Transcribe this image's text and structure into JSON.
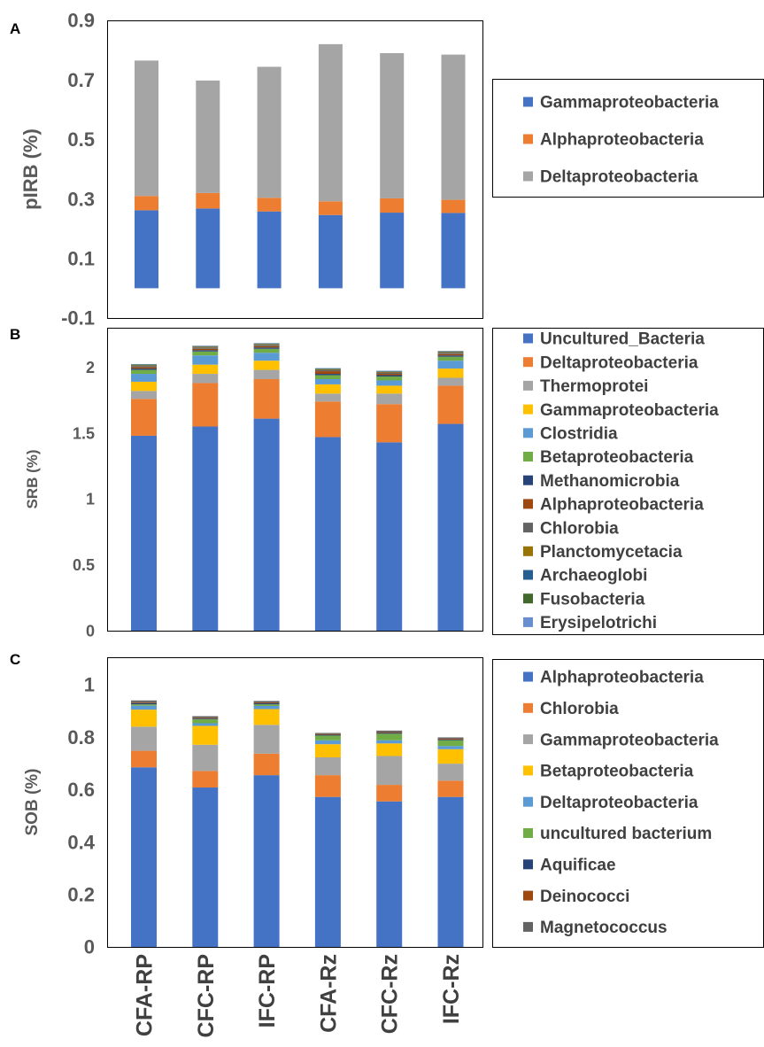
{
  "chart_data": [
    {
      "panel": "A",
      "type": "bar",
      "stacked": true,
      "ylabel": "pIRB (%)",
      "ylim": [
        -0.1,
        0.9
      ],
      "yticks": [
        -0.1,
        0.1,
        0.3,
        0.5,
        0.7,
        0.9
      ],
      "ytick_labels": [
        "-0.1",
        "0.1",
        "0.3",
        "0.5",
        "0.7",
        "0.9"
      ],
      "categories": [
        "CFA-RP",
        "CFC-RP",
        "IFC-RP",
        "CFA-Rz",
        "CFC-Rz",
        "IFC-Rz"
      ],
      "legend_position": "right",
      "series": [
        {
          "name": "Gammaproteobacteria",
          "color": "#4472C4",
          "values": [
            0.262,
            0.268,
            0.258,
            0.246,
            0.254,
            0.253
          ]
        },
        {
          "name": "Alphaproteobacteria",
          "color": "#ED7D31",
          "values": [
            0.048,
            0.052,
            0.046,
            0.046,
            0.048,
            0.044
          ]
        },
        {
          "name": "Deltaproteobacteria",
          "color": "#A5A5A5",
          "values": [
            0.455,
            0.378,
            0.44,
            0.528,
            0.488,
            0.488
          ]
        }
      ]
    },
    {
      "panel": "B",
      "type": "bar",
      "stacked": true,
      "ylabel": "SRB (%)",
      "ylim": [
        0,
        2.3
      ],
      "yticks": [
        0,
        0.5,
        1,
        1.5,
        2
      ],
      "ytick_labels": [
        "0",
        "0.5",
        "1",
        "1.5",
        "2"
      ],
      "categories": [
        "CFA-RP",
        "CFC-RP",
        "IFC-RP",
        "CFA-Rz",
        "CFC-Rz",
        "IFC-Rz"
      ],
      "legend_position": "right",
      "series": [
        {
          "name": "Uncultured_Bacteria",
          "color": "#4472C4",
          "values": [
            1.48,
            1.55,
            1.61,
            1.47,
            1.43,
            1.57
          ]
        },
        {
          "name": "Deltaproteobacteria",
          "color": "#ED7D31",
          "values": [
            0.28,
            0.33,
            0.3,
            0.27,
            0.29,
            0.29
          ]
        },
        {
          "name": "Thermoprotei",
          "color": "#A5A5A5",
          "values": [
            0.06,
            0.07,
            0.07,
            0.06,
            0.08,
            0.06
          ]
        },
        {
          "name": "Gammaproteobacteria",
          "color": "#FFC000",
          "values": [
            0.07,
            0.07,
            0.07,
            0.07,
            0.06,
            0.07
          ]
        },
        {
          "name": "Clostridia",
          "color": "#5B9BD5",
          "values": [
            0.06,
            0.07,
            0.06,
            0.04,
            0.04,
            0.06
          ]
        },
        {
          "name": "Betaproteobacteria",
          "color": "#70AD47",
          "values": [
            0.03,
            0.03,
            0.03,
            0.03,
            0.03,
            0.03
          ]
        },
        {
          "name": "Methanomicrobia",
          "color": "#264478",
          "values": [
            0.01,
            0.01,
            0.01,
            0.01,
            0.01,
            0.01
          ]
        },
        {
          "name": "Alphaproteobacteria",
          "color": "#9E480E",
          "values": [
            0.01,
            0.01,
            0.01,
            0.02,
            0.01,
            0.01
          ]
        },
        {
          "name": "Chlorobia",
          "color": "#636363",
          "values": [
            0.01,
            0.01,
            0.01,
            0.01,
            0.01,
            0.01
          ]
        },
        {
          "name": "Planctomycetacia",
          "color": "#997300",
          "values": [
            0.005,
            0.005,
            0.005,
            0.005,
            0.005,
            0.005
          ]
        },
        {
          "name": "Archaeoglobi",
          "color": "#255E91",
          "values": [
            0.003,
            0.003,
            0.003,
            0.003,
            0.003,
            0.003
          ]
        },
        {
          "name": "Fusobacteria",
          "color": "#43682B",
          "values": [
            0.003,
            0.003,
            0.003,
            0.003,
            0.003,
            0.003
          ]
        },
        {
          "name": "Erysipelotrichi",
          "color": "#698ED0",
          "values": [
            0.003,
            0.003,
            0.003,
            0.003,
            0.003,
            0.003
          ]
        }
      ]
    },
    {
      "panel": "C",
      "type": "bar",
      "stacked": true,
      "ylabel": "SOB (%)",
      "ylim": [
        0,
        1.05
      ],
      "yticks": [
        0,
        0.2,
        0.4,
        0.6,
        0.8,
        1
      ],
      "ytick_labels": [
        "0",
        "0.2",
        "0.4",
        "0.6",
        "0.8",
        "1"
      ],
      "categories": [
        "CFA-RP",
        "CFC-RP",
        "IFC-RP",
        "CFA-Rz",
        "CFC-Rz",
        "IFC-Rz"
      ],
      "legend_position": "right",
      "series": [
        {
          "name": "Alphaproteobacteria",
          "color": "#4472C4",
          "values": [
            0.685,
            0.608,
            0.655,
            0.572,
            0.555,
            0.572
          ]
        },
        {
          "name": "Chlorobia",
          "color": "#ED7D31",
          "values": [
            0.063,
            0.063,
            0.082,
            0.083,
            0.063,
            0.062
          ]
        },
        {
          "name": "Gammaproteobacteria",
          "color": "#A5A5A5",
          "values": [
            0.092,
            0.1,
            0.11,
            0.068,
            0.11,
            0.065
          ]
        },
        {
          "name": "Betaproteobacteria",
          "color": "#FFC000",
          "values": [
            0.065,
            0.072,
            0.06,
            0.05,
            0.048,
            0.055
          ]
        },
        {
          "name": "Deltaproteobacteria",
          "color": "#5B9BD5",
          "values": [
            0.015,
            0.01,
            0.012,
            0.015,
            0.012,
            0.012
          ]
        },
        {
          "name": "uncultured bacterium",
          "color": "#70AD47",
          "values": [
            0.005,
            0.015,
            0.006,
            0.018,
            0.025,
            0.022
          ]
        },
        {
          "name": "Aquificae",
          "color": "#264478",
          "values": [
            0.005,
            0.003,
            0.004,
            0.003,
            0.003,
            0.003
          ]
        },
        {
          "name": "Deinococci",
          "color": "#9E480E",
          "values": [
            0.003,
            0.003,
            0.003,
            0.003,
            0.003,
            0.003
          ]
        },
        {
          "name": "Magnetococcus",
          "color": "#636363",
          "values": [
            0.007,
            0.006,
            0.006,
            0.004,
            0.006,
            0.005
          ]
        }
      ]
    }
  ]
}
